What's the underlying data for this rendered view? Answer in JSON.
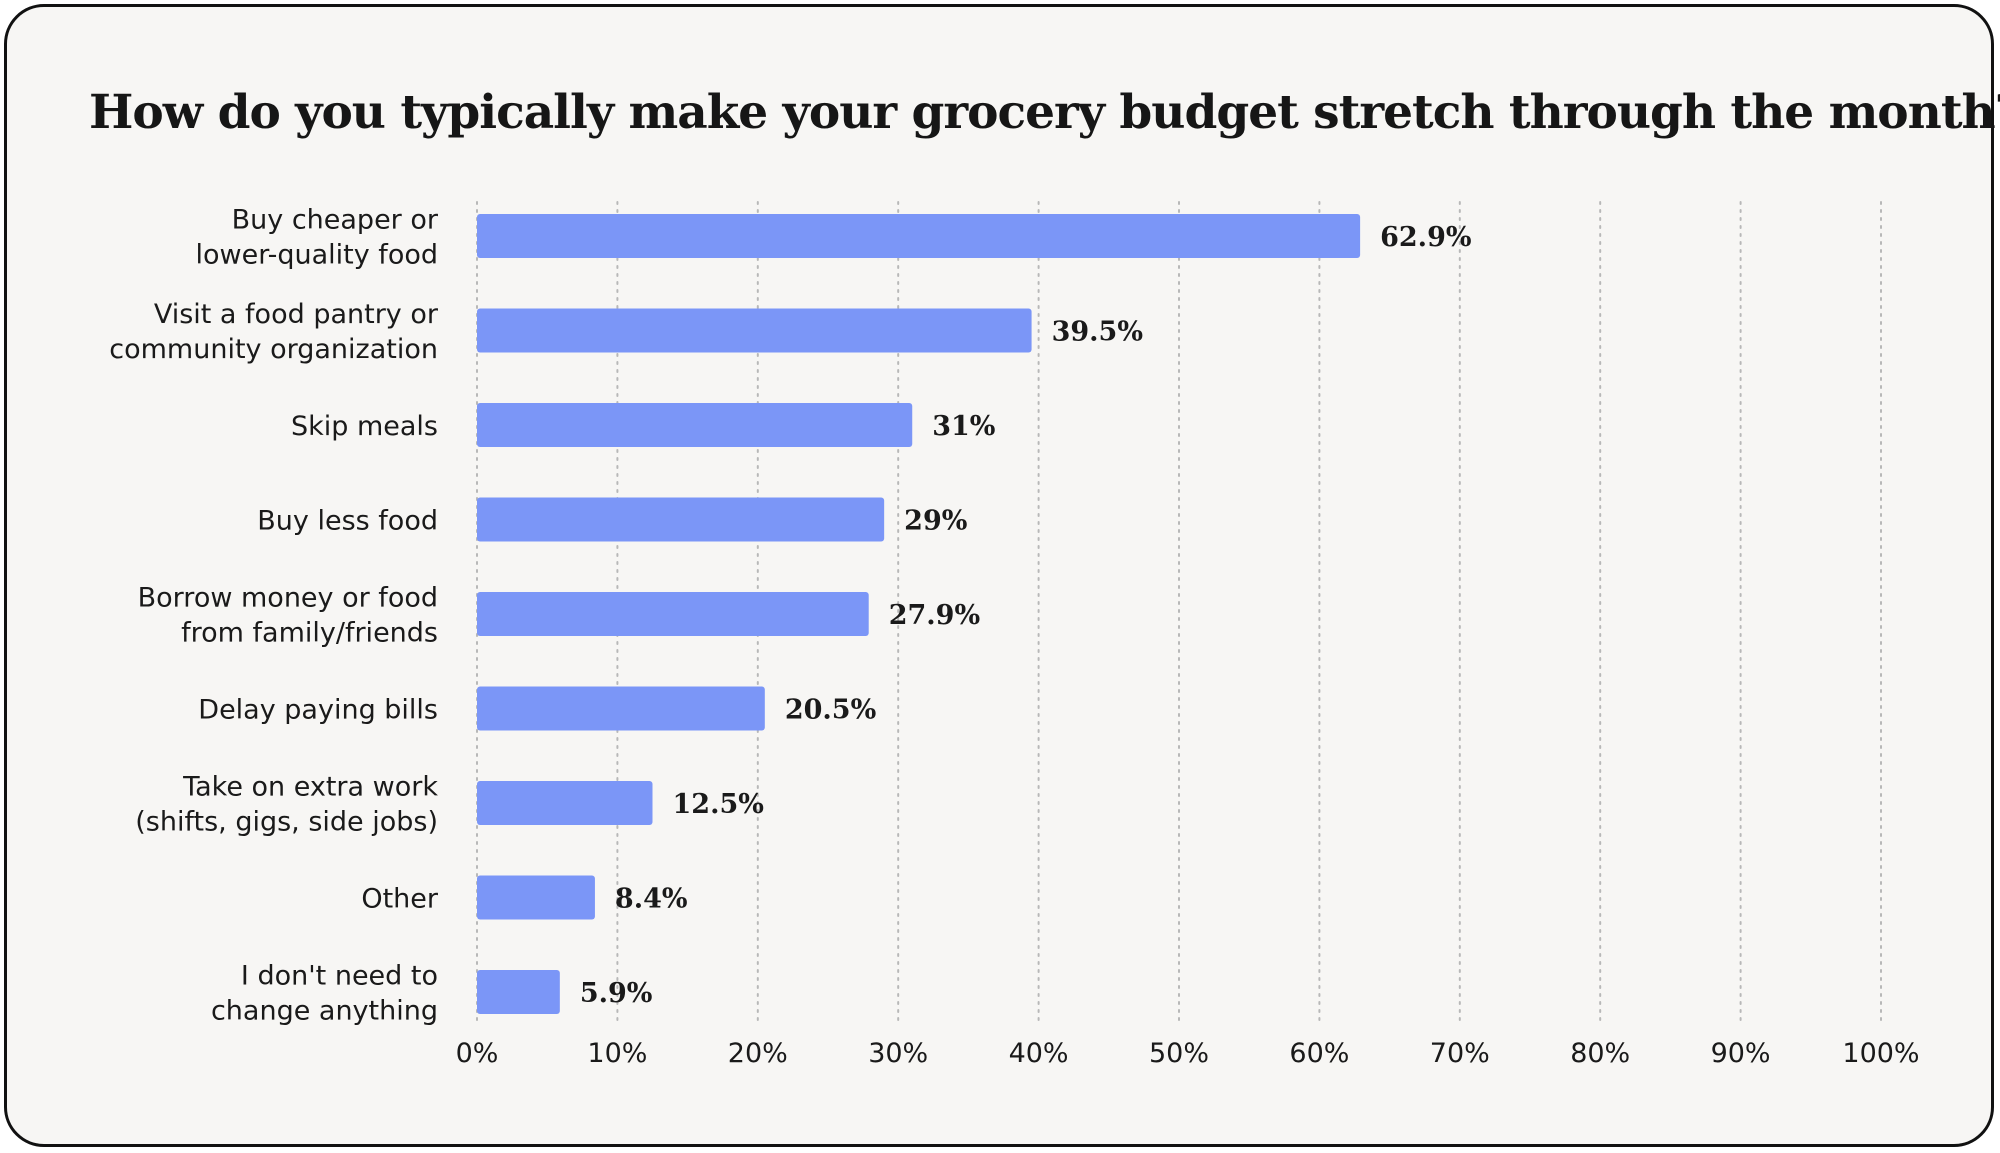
{
  "chart_data": {
    "type": "bar",
    "orientation": "horizontal",
    "title": "How do you typically make your grocery budget stretch through the month?",
    "categories": [
      [
        "Buy cheaper or",
        "lower-quality food"
      ],
      [
        "Visit a food pantry or",
        "community organization"
      ],
      [
        "Skip meals"
      ],
      [
        "Buy less food"
      ],
      [
        "Borrow money or food",
        "from family/friends"
      ],
      [
        "Delay paying bills"
      ],
      [
        "Take on extra work",
        "(shifts, gigs, side jobs)"
      ],
      [
        "Other"
      ],
      [
        "I don't need to",
        "change anything"
      ]
    ],
    "values": [
      62.9,
      39.5,
      31,
      29,
      27.9,
      20.5,
      12.5,
      8.4,
      5.9
    ],
    "value_labels": [
      "62.9%",
      "39.5%",
      "31%",
      "29%",
      "27.9%",
      "20.5%",
      "12.5%",
      "8.4%",
      "5.9%"
    ],
    "xlim": [
      0,
      100
    ],
    "xticks": [
      0,
      10,
      20,
      30,
      40,
      50,
      60,
      70,
      80,
      90,
      100
    ],
    "xtick_labels": [
      "0%",
      "10%",
      "20%",
      "30%",
      "40%",
      "50%",
      "60%",
      "70%",
      "80%",
      "90%",
      "100%"
    ],
    "xlabel": "",
    "ylabel": "",
    "grid": "vertical-dotted",
    "bar_color": "#7b96f7",
    "text_color": "#1a1a1a",
    "grid_color": "#b8b8b8"
  }
}
